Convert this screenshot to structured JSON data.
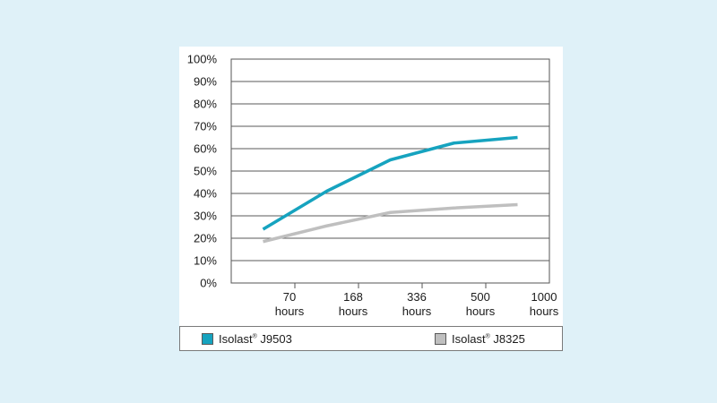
{
  "chart_data": {
    "type": "line",
    "title": "",
    "xlabel": "",
    "ylabel": "",
    "ylim": [
      0,
      100
    ],
    "y_ticks": [
      "0%",
      "10%",
      "20%",
      "30%",
      "40%",
      "50%",
      "60%",
      "70%",
      "80%",
      "90%",
      "100%"
    ],
    "x_ticks": [
      {
        "value": "70",
        "unit": "hours"
      },
      {
        "value": "168",
        "unit": "hours"
      },
      {
        "value": "336",
        "unit": "hours"
      },
      {
        "value": "500",
        "unit": "hours"
      },
      {
        "value": "1000",
        "unit": "hours"
      }
    ],
    "grid": true,
    "legend_position": "bottom",
    "series": [
      {
        "name": "Isolast",
        "name_suffix": "J9503",
        "color": "#16a3bf",
        "x": [
          0.5,
          1.5,
          2.5,
          3.5,
          4.5
        ],
        "values": [
          24,
          41,
          55,
          62.5,
          65
        ]
      },
      {
        "name": "Isolast",
        "name_suffix": "J8325",
        "color": "#bfbfbf",
        "x": [
          0.5,
          1.5,
          2.5,
          3.5,
          4.5
        ],
        "values": [
          18.5,
          25.5,
          31.5,
          33.5,
          35
        ]
      }
    ]
  },
  "legend": {
    "items": [
      {
        "brand": "Isolast",
        "mark": "®",
        "model": "J9503",
        "color": "#16a3bf"
      },
      {
        "brand": "Isolast",
        "mark": "®",
        "model": "J8325",
        "color": "#bfbfbf"
      }
    ]
  }
}
